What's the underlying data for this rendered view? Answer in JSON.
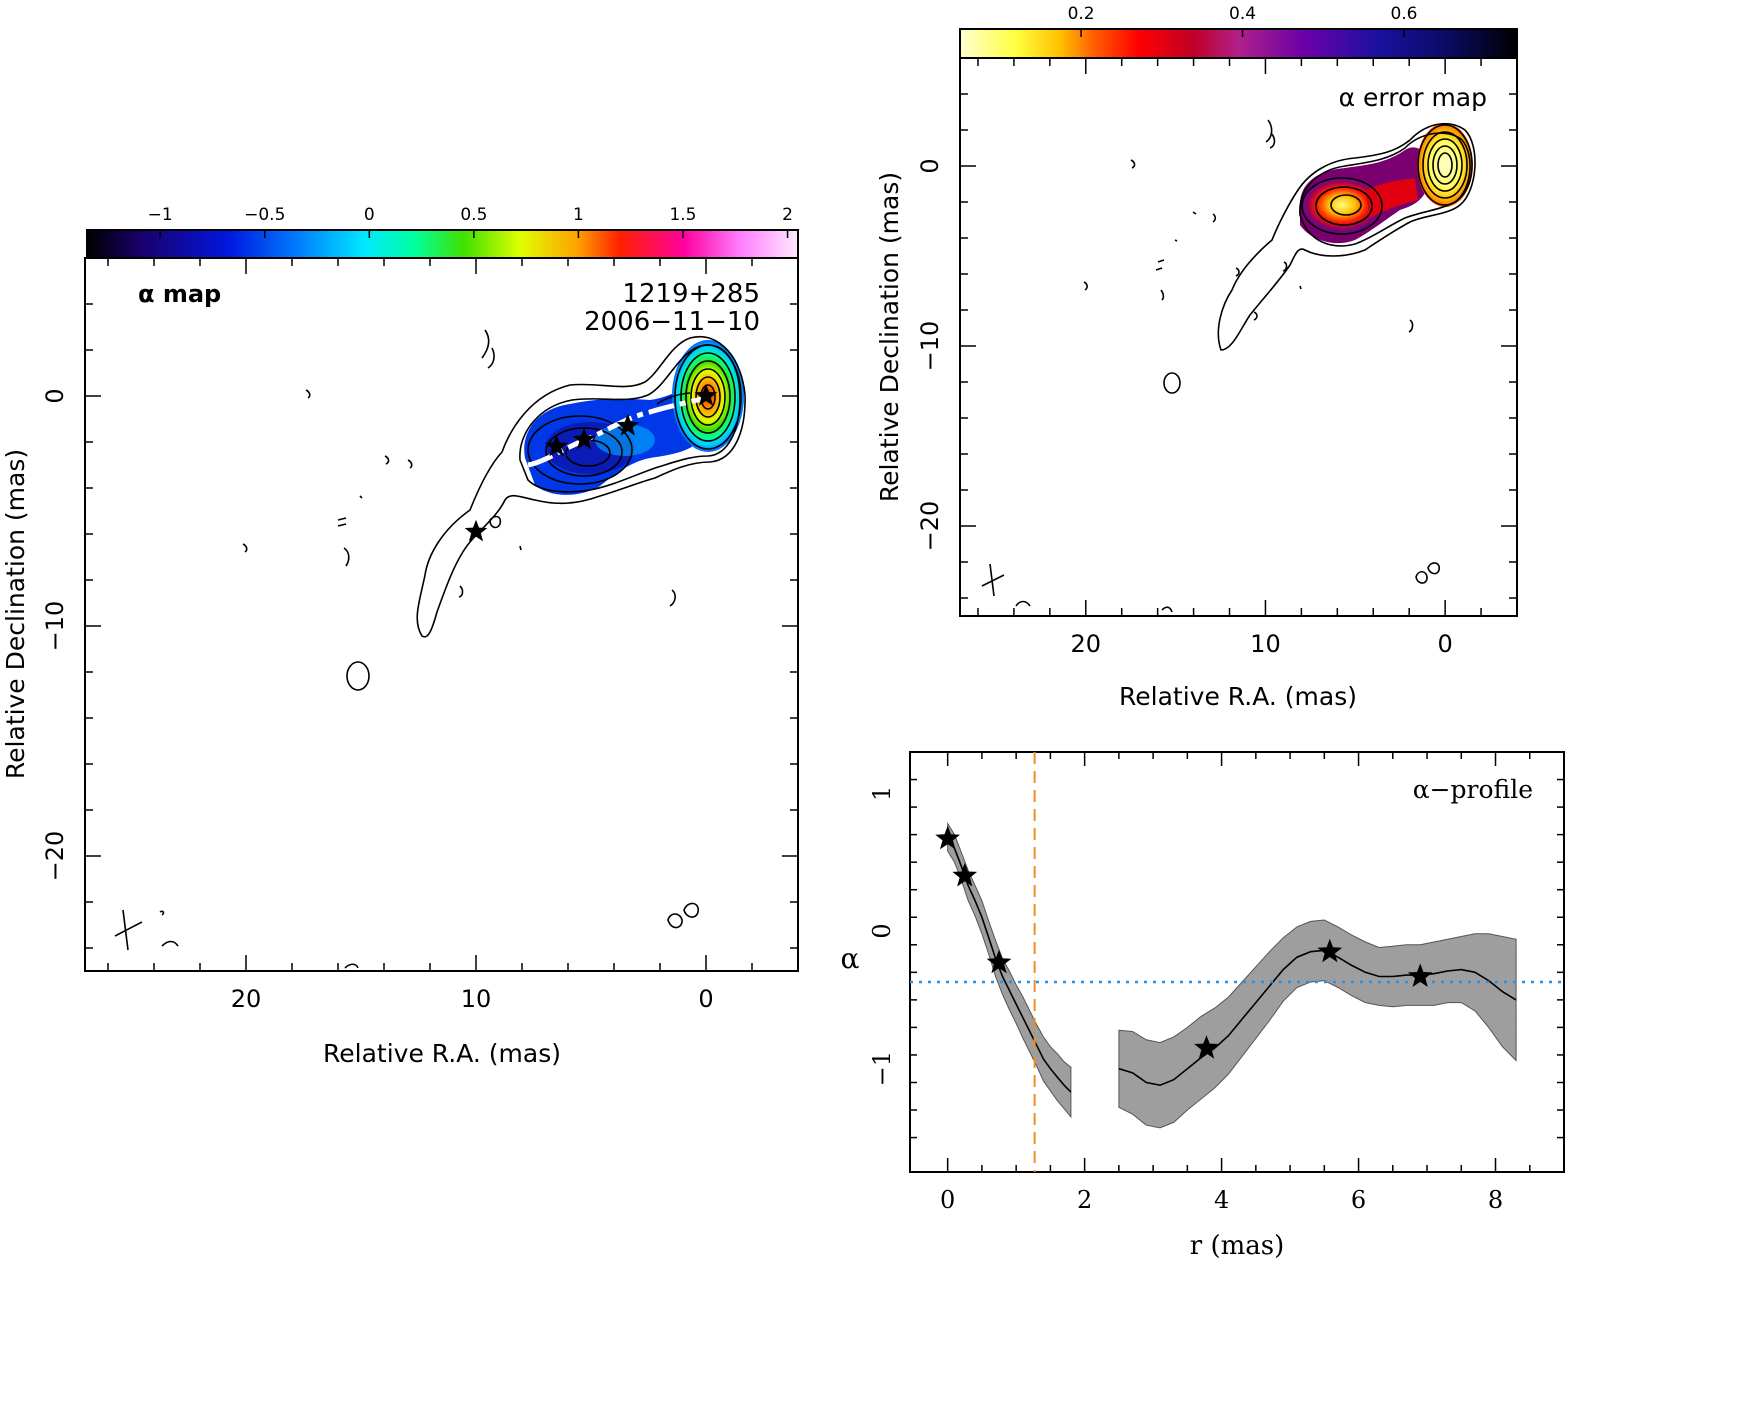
{
  "colors": {
    "axis": "#000000",
    "band": "#9e9e9e",
    "vline": "#f28c28",
    "hline": "#2b8fe6",
    "ridge": "#ffffff"
  },
  "panels": {
    "alpha_map": {
      "label": "α  map",
      "source": "1219+285",
      "date": "2006−11−10",
      "xlabel": "Relative R.A. (mas)",
      "ylabel": "Relative Declination (mas)",
      "colorbar_ticks": [
        "−1",
        "−0.5",
        "0",
        "0.5",
        "1",
        "1.5",
        "2"
      ],
      "xticks": [
        "20",
        "10",
        "0"
      ],
      "yticks": [
        "0",
        "−10",
        "−20"
      ]
    },
    "error_map": {
      "label": "α  error map",
      "xlabel": "Relative R.A. (mas)",
      "ylabel": "Relative Declination (mas)",
      "colorbar_ticks": [
        "0.2",
        "0.4",
        "0.6"
      ],
      "xticks": [
        "20",
        "10",
        "0"
      ],
      "yticks": [
        "0",
        "−10",
        "−20"
      ]
    },
    "profile": {
      "label": "α−profile",
      "xlabel": "r (mas)",
      "ylabel": "α",
      "xticks": [
        "0",
        "2",
        "4",
        "6",
        "8"
      ],
      "yticks": [
        "1",
        "0",
        "−1"
      ]
    }
  },
  "chart_data": [
    {
      "type": "heatmap",
      "panel": "alpha_map",
      "colorbar_range": [
        -1.35,
        2.05
      ],
      "xlim": [
        27,
        -4
      ],
      "ylim": [
        -25,
        6
      ],
      "stars": [
        [
          0,
          0
        ],
        [
          3.4,
          -1.3
        ],
        [
          5.3,
          -1.9
        ],
        [
          6.5,
          -2.2
        ],
        [
          10,
          -5.9
        ]
      ]
    },
    {
      "type": "heatmap",
      "panel": "error_map",
      "colorbar_range": [
        0.05,
        0.74
      ],
      "xlim": [
        27,
        -4
      ],
      "ylim": [
        -25,
        6
      ]
    },
    {
      "type": "line",
      "panel": "profile",
      "xlim": [
        -0.55,
        9
      ],
      "ylim": [
        -1.75,
        1.3
      ],
      "segments": [
        {
          "x": [
            0,
            0.1,
            0.2,
            0.3,
            0.4,
            0.5,
            0.6,
            0.7,
            0.8,
            0.9,
            1.0,
            1.1,
            1.2,
            1.3,
            1.4,
            1.5,
            1.6,
            1.7,
            1.8
          ],
          "y": [
            0.68,
            0.6,
            0.47,
            0.33,
            0.22,
            0.1,
            -0.05,
            -0.2,
            -0.33,
            -0.43,
            -0.53,
            -0.63,
            -0.73,
            -0.83,
            -0.93,
            -1.0,
            -1.06,
            -1.12,
            -1.17
          ],
          "err": [
            0.1,
            0.1,
            0.1,
            0.11,
            0.11,
            0.12,
            0.12,
            0.13,
            0.13,
            0.14,
            0.14,
            0.15,
            0.15,
            0.15,
            0.16,
            0.16,
            0.17,
            0.17,
            0.18
          ]
        },
        {
          "x": [
            2.5,
            2.7,
            2.9,
            3.1,
            3.3,
            3.5,
            3.7,
            3.9,
            4.1,
            4.3,
            4.5,
            4.7,
            4.9,
            5.1,
            5.3,
            5.5,
            5.7,
            5.9,
            6.1,
            6.3,
            6.5,
            6.7,
            6.9,
            7.1,
            7.3,
            7.5,
            7.7,
            7.9,
            8.1,
            8.3
          ],
          "y": [
            -1.0,
            -1.03,
            -1.1,
            -1.12,
            -1.08,
            -1.0,
            -0.92,
            -0.85,
            -0.76,
            -0.64,
            -0.52,
            -0.4,
            -0.28,
            -0.19,
            -0.15,
            -0.14,
            -0.19,
            -0.25,
            -0.3,
            -0.33,
            -0.33,
            -0.32,
            -0.32,
            -0.31,
            -0.29,
            -0.28,
            -0.3,
            -0.36,
            -0.44,
            -0.5
          ],
          "err": [
            0.28,
            0.3,
            0.31,
            0.31,
            0.31,
            0.3,
            0.3,
            0.29,
            0.28,
            0.27,
            0.26,
            0.25,
            0.23,
            0.22,
            0.22,
            0.22,
            0.22,
            0.22,
            0.22,
            0.21,
            0.22,
            0.22,
            0.22,
            0.23,
            0.23,
            0.24,
            0.28,
            0.34,
            0.4,
            0.44
          ]
        }
      ],
      "stars": [
        [
          0,
          0.67
        ],
        [
          0.25,
          0.4
        ],
        [
          0.75,
          -0.23
        ],
        [
          3.78,
          -0.85
        ],
        [
          5.58,
          -0.15
        ],
        [
          6.9,
          -0.33
        ]
      ],
      "vline_x": 1.27,
      "hline_y": -0.37
    }
  ]
}
